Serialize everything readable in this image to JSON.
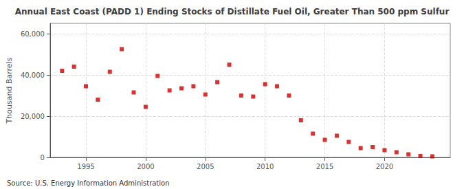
{
  "chart_data": {
    "type": "scatter",
    "title": "Annual East Coast (PADD 1) Ending Stocks of Distillate Fuel Oil, Greater Than 500 ppm Sulfur",
    "ylabel": "Thousand Barrels",
    "annotations": [
      "Source: U.S. Energy Information Administration"
    ],
    "x": [
      1993,
      1994,
      1995,
      1996,
      1997,
      1998,
      1999,
      2000,
      2001,
      2002,
      2003,
      2004,
      2005,
      2006,
      2007,
      2008,
      2009,
      2010,
      2011,
      2012,
      2013,
      2014,
      2015,
      2016,
      2017,
      2018,
      2019,
      2020,
      2021,
      2022,
      2023,
      2024
    ],
    "values": [
      42000,
      44000,
      34500,
      28000,
      41500,
      52500,
      31500,
      24500,
      39500,
      32500,
      33500,
      34500,
      30500,
      36500,
      45000,
      30000,
      29500,
      35500,
      34500,
      30000,
      18000,
      11500,
      8500,
      10500,
      7500,
      4500,
      5000,
      3500,
      2500,
      1500,
      700,
      500
    ],
    "color": "#cc0000",
    "marker": "square",
    "xlim": [
      1992.0,
      2025.5
    ],
    "xticks": [
      1995,
      2000,
      2005,
      2010,
      2015,
      2020
    ],
    "ylim": [
      0,
      65000
    ],
    "yticks": [
      0,
      {
        "value": 20000,
        "label": "20,000"
      },
      {
        "value": 40000,
        "label": "40,000"
      },
      {
        "value": 60000,
        "label": "60,000"
      }
    ],
    "grid": true
  }
}
